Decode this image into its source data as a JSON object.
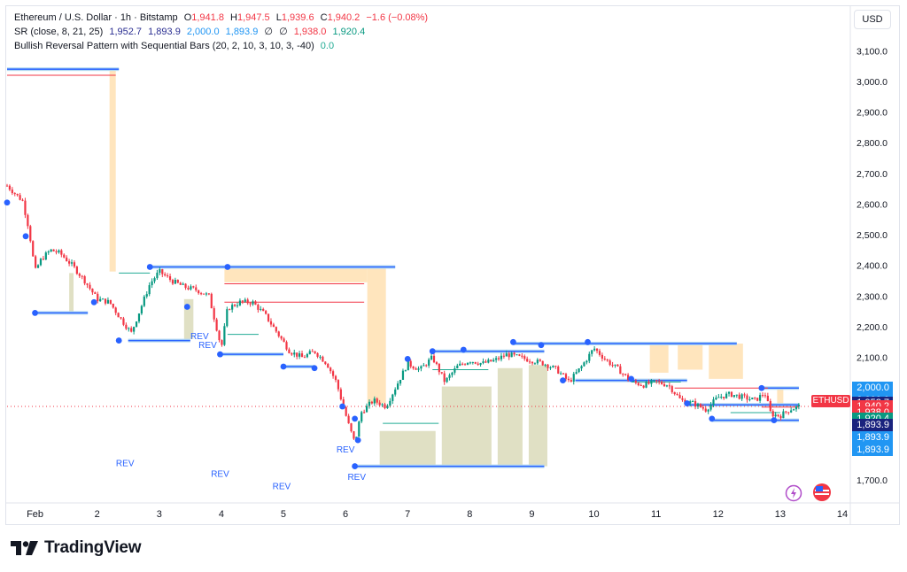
{
  "header": {
    "symbol": "Ethereum / U.S. Dollar · 1h · Bitstamp",
    "o_label": "O",
    "o_value": "1,941.8",
    "h_label": "H",
    "h_value": "1,947.5",
    "l_label": "L",
    "l_value": "1,939.6",
    "c_label": "C",
    "c_value": "1,940.2",
    "change": "−1.6 (−0.08%)",
    "ind1_name": "SR (close, 8, 21, 25)",
    "ind1_values": [
      "1,952.7",
      "1,893.9",
      "2,000.0",
      "1,893.9",
      "∅",
      "∅",
      "1,938.0",
      "1,920.4"
    ],
    "ind2_name": "Bullish Reversal Pattern with Sequential Bars (20, 2, 10, 3, 10, 3, -40)",
    "ind2_value": "0.0"
  },
  "currency_button": "USD",
  "symbol_tag": "ETHUSD",
  "price_badges": [
    {
      "value": "2,000.0",
      "color": "#2196f3",
      "price": 2000
    },
    {
      "value": "2,000.0",
      "color": "#2196f3",
      "price": 1960
    },
    {
      "value": "1,952.7",
      "color": "#1a237e",
      "price": 1952.7
    },
    {
      "value": "1,940.2",
      "color": "#f23645",
      "price": 1940.2
    },
    {
      "value": "1,938.0",
      "color": "#f23645",
      "price": 1920
    },
    {
      "value": "1,920.4",
      "color": "#089981",
      "price": 1900
    },
    {
      "value": "1,893.9",
      "color": "#1a237e",
      "price": 1880
    },
    {
      "value": "1,893.9",
      "color": "#2196f3",
      "price": 1840
    },
    {
      "value": "1,893.9",
      "color": "#2196f3",
      "price": 1800
    }
  ],
  "watermark": "TradingView",
  "rev_labels": [
    {
      "text": "REV",
      "x": 2.45,
      "price": 1745
    },
    {
      "text": "REV",
      "x": 3.78,
      "price": 2130
    },
    {
      "text": "REV",
      "x": 3.98,
      "price": 1710
    },
    {
      "text": "REV",
      "x": 4.97,
      "price": 1670
    },
    {
      "text": "REV",
      "x": 6.0,
      "price": 1790
    },
    {
      "text": "REV",
      "x": 6.18,
      "price": 1700
    },
    {
      "text": "REV",
      "x": 3.65,
      "price": 2160
    }
  ],
  "chart_data": {
    "type": "candlestick",
    "title": "Ethereum / U.S. Dollar · 1h · Bitstamp",
    "x_unit": "day of February",
    "xlim": [
      0.55,
      14.1
    ],
    "ylim": [
      1660,
      3150
    ],
    "x_ticks": [
      {
        "label": "Feb",
        "x": 1
      },
      {
        "label": "2",
        "x": 2
      },
      {
        "label": "3",
        "x": 3
      },
      {
        "label": "4",
        "x": 4
      },
      {
        "label": "5",
        "x": 5
      },
      {
        "label": "6",
        "x": 6
      },
      {
        "label": "7",
        "x": 7
      },
      {
        "label": "8",
        "x": 8
      },
      {
        "label": "9",
        "x": 9
      },
      {
        "label": "10",
        "x": 10
      },
      {
        "label": "11",
        "x": 11
      },
      {
        "label": "12",
        "x": 12
      },
      {
        "label": "13",
        "x": 13
      },
      {
        "label": "14",
        "x": 14
      }
    ],
    "y_ticks": [
      "3,100.0",
      "3,000.0",
      "2,900.0",
      "2,800.0",
      "2,700.0",
      "2,600.0",
      "2,500.0",
      "2,400.0",
      "2,300.0",
      "2,200.0",
      "2,100.0",
      "2,000.0",
      "1,900.0",
      "1,800.0",
      "1,700.0"
    ],
    "y_tick_values": [
      3100,
      3000,
      2900,
      2800,
      2700,
      2600,
      2500,
      2400,
      2300,
      2200,
      2100,
      2000,
      1900,
      1800,
      1700
    ],
    "price_path": [
      [
        0.55,
        2660
      ],
      [
        0.65,
        2640
      ],
      [
        0.8,
        2610
      ],
      [
        0.9,
        2520
      ],
      [
        1.0,
        2380
      ],
      [
        1.1,
        2420
      ],
      [
        1.25,
        2450
      ],
      [
        1.4,
        2440
      ],
      [
        1.6,
        2400
      ],
      [
        1.8,
        2350
      ],
      [
        2.0,
        2290
      ],
      [
        2.2,
        2280
      ],
      [
        2.4,
        2220
      ],
      [
        2.55,
        2180
      ],
      [
        2.7,
        2260
      ],
      [
        2.85,
        2340
      ],
      [
        3.0,
        2380
      ],
      [
        3.2,
        2350
      ],
      [
        3.4,
        2330
      ],
      [
        3.6,
        2320
      ],
      [
        3.8,
        2300
      ],
      [
        3.92,
        2200
      ],
      [
        4.0,
        2130
      ],
      [
        4.1,
        2260
      ],
      [
        4.3,
        2280
      ],
      [
        4.5,
        2280
      ],
      [
        4.7,
        2240
      ],
      [
        4.9,
        2180
      ],
      [
        5.1,
        2120
      ],
      [
        5.3,
        2100
      ],
      [
        5.5,
        2120
      ],
      [
        5.7,
        2080
      ],
      [
        5.85,
        2020
      ],
      [
        5.95,
        1950
      ],
      [
        6.05,
        1880
      ],
      [
        6.15,
        1820
      ],
      [
        6.25,
        1920
      ],
      [
        6.45,
        1960
      ],
      [
        6.65,
        1940
      ],
      [
        6.8,
        2000
      ],
      [
        7.0,
        2080
      ],
      [
        7.2,
        2060
      ],
      [
        7.4,
        2100
      ],
      [
        7.6,
        2020
      ],
      [
        7.8,
        2070
      ],
      [
        8.0,
        2090
      ],
      [
        8.2,
        2080
      ],
      [
        8.4,
        2090
      ],
      [
        8.6,
        2110
      ],
      [
        8.8,
        2100
      ],
      [
        9.0,
        2090
      ],
      [
        9.2,
        2080
      ],
      [
        9.4,
        2060
      ],
      [
        9.6,
        2020
      ],
      [
        9.8,
        2070
      ],
      [
        10.0,
        2130
      ],
      [
        10.2,
        2090
      ],
      [
        10.4,
        2060
      ],
      [
        10.6,
        2020
      ],
      [
        10.8,
        2010
      ],
      [
        11.0,
        2020
      ],
      [
        11.2,
        2010
      ],
      [
        11.4,
        1960
      ],
      [
        11.6,
        1950
      ],
      [
        11.8,
        1930
      ],
      [
        12.0,
        1970
      ],
      [
        12.2,
        1980
      ],
      [
        12.4,
        1970
      ],
      [
        12.6,
        1960
      ],
      [
        12.75,
        1985
      ],
      [
        12.85,
        1915
      ],
      [
        13.0,
        1910
      ],
      [
        13.15,
        1930
      ],
      [
        13.3,
        1940
      ]
    ],
    "last_price": 1940.2,
    "support_lines": [
      {
        "x1": 0.55,
        "x2": 2.35,
        "price": 3040
      },
      {
        "x1": 1.0,
        "x2": 1.85,
        "price": 2245
      },
      {
        "x1": 2.5,
        "x2": 3.5,
        "price": 2155
      },
      {
        "x1": 2.85,
        "x2": 4.4,
        "price": 2395
      },
      {
        "x1": 4.0,
        "x2": 5.0,
        "price": 2110
      },
      {
        "x1": 4.0,
        "x2": 6.8,
        "price": 2395
      },
      {
        "x1": 5.0,
        "x2": 5.5,
        "price": 2070
      },
      {
        "x1": 6.15,
        "x2": 9.2,
        "price": 1745
      },
      {
        "x1": 7.4,
        "x2": 9.2,
        "price": 2120
      },
      {
        "x1": 8.7,
        "x2": 10.7,
        "price": 2145
      },
      {
        "x1": 9.7,
        "x2": 12.3,
        "price": 2145
      },
      {
        "x1": 9.7,
        "x2": 11.5,
        "price": 2025
      },
      {
        "x1": 11.5,
        "x2": 13.3,
        "price": 1945
      },
      {
        "x1": 11.9,
        "x2": 13.3,
        "price": 1895
      },
      {
        "x1": 12.7,
        "x2": 13.3,
        "price": 2000
      }
    ],
    "resistance_lines": [
      {
        "x1": 0.55,
        "x2": 2.3,
        "price": 3020
      },
      {
        "x1": 4.05,
        "x2": 6.3,
        "price": 2340
      },
      {
        "x1": 4.05,
        "x2": 6.3,
        "price": 2280
      },
      {
        "x1": 11.3,
        "x2": 12.8,
        "price": 2000
      },
      {
        "x1": 12.7,
        "x2": 13.3,
        "price": 1938
      }
    ],
    "green_lines": [
      {
        "x1": 2.35,
        "x2": 2.85,
        "price": 2375
      },
      {
        "x1": 4.1,
        "x2": 4.6,
        "price": 2175
      },
      {
        "x1": 6.6,
        "x2": 7.5,
        "price": 1885
      },
      {
        "x1": 7.4,
        "x2": 8.3,
        "price": 2060
      },
      {
        "x1": 10.6,
        "x2": 11.4,
        "price": 2020
      },
      {
        "x1": 12.2,
        "x2": 13.0,
        "price": 1920
      }
    ],
    "orange_zones": [
      {
        "x1": 2.2,
        "x2": 2.3,
        "p1": 2380,
        "p2": 3040
      },
      {
        "x1": 4.05,
        "x2": 6.35,
        "p1": 2345,
        "p2": 2395
      },
      {
        "x1": 6.35,
        "x2": 6.65,
        "p1": 1950,
        "p2": 2395
      },
      {
        "x1": 10.9,
        "x2": 11.2,
        "p1": 2050,
        "p2": 2145
      },
      {
        "x1": 11.35,
        "x2": 11.75,
        "p1": 2060,
        "p2": 2145
      },
      {
        "x1": 11.85,
        "x2": 12.4,
        "p1": 2030,
        "p2": 2145
      },
      {
        "x1": 12.95,
        "x2": 13.05,
        "p1": 1950,
        "p2": 2000
      }
    ],
    "olive_zones": [
      {
        "x1": 1.55,
        "x2": 1.62,
        "p1": 2250,
        "p2": 2375
      },
      {
        "x1": 3.4,
        "x2": 3.55,
        "p1": 2160,
        "p2": 2290
      },
      {
        "x1": 6.55,
        "x2": 7.45,
        "p1": 1745,
        "p2": 1860
      },
      {
        "x1": 7.55,
        "x2": 8.35,
        "p1": 1745,
        "p2": 2005
      },
      {
        "x1": 8.45,
        "x2": 8.85,
        "p1": 1745,
        "p2": 2065
      },
      {
        "x1": 8.95,
        "x2": 9.25,
        "p1": 1745,
        "p2": 2075
      }
    ],
    "blue_dots": [
      [
        0.55,
        2605
      ],
      [
        0.85,
        2495
      ],
      [
        1.0,
        2245
      ],
      [
        1.95,
        2280
      ],
      [
        2.35,
        2155
      ],
      [
        2.85,
        2395
      ],
      [
        3.45,
        2265
      ],
      [
        3.98,
        2110
      ],
      [
        4.1,
        2395
      ],
      [
        5.0,
        2070
      ],
      [
        5.5,
        2065
      ],
      [
        5.95,
        1940
      ],
      [
        6.15,
        1900
      ],
      [
        6.15,
        1745
      ],
      [
        6.2,
        1830
      ],
      [
        7.0,
        2095
      ],
      [
        7.4,
        2120
      ],
      [
        7.9,
        2125
      ],
      [
        8.7,
        2150
      ],
      [
        9.15,
        2140
      ],
      [
        9.5,
        2025
      ],
      [
        9.9,
        2150
      ],
      [
        10.6,
        2030
      ],
      [
        11.5,
        1950
      ],
      [
        11.9,
        1900
      ],
      [
        12.7,
        2000
      ],
      [
        12.9,
        1895
      ]
    ],
    "grid": false,
    "legend": "top-left"
  }
}
